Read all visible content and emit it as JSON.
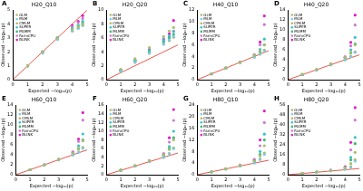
{
  "chart_data": [
    {
      "type": "scatter",
      "panel": "A",
      "title": "H20_Q10",
      "x_label": "Expected −log₁₀(p)",
      "y_label": "Observed −log₁₀(p)",
      "xlim": [
        0,
        5
      ],
      "xticks": [
        0,
        1,
        2,
        3,
        4,
        5
      ],
      "ylim": [
        0,
        5
      ],
      "yticks": [
        0,
        1,
        2,
        3,
        4,
        5
      ],
      "grid": false,
      "legend": "top-left",
      "marker": "circle",
      "x": [
        1,
        2,
        3,
        4,
        4.4,
        4.7
      ],
      "series": [
        {
          "name": "GLM",
          "color": "#a8bd6e",
          "values": [
            1,
            2,
            3,
            3.6,
            3.8,
            4.0
          ]
        },
        {
          "name": "MLM",
          "color": "#7fc8e6",
          "values": [
            1,
            1.9,
            2.9,
            3.5,
            3.7,
            3.9
          ]
        },
        {
          "name": "CMLM",
          "color": "#b5b35c",
          "values": [
            1,
            2,
            2.9,
            3.5,
            3.7,
            3.9
          ]
        },
        {
          "name": "SUPER",
          "color": "#38c4c4",
          "values": [
            1,
            2,
            3,
            3.7,
            3.9,
            4.2
          ]
        },
        {
          "name": "MLMM",
          "color": "#3cb878",
          "values": [
            1,
            2,
            3,
            3.6,
            3.9,
            4.1
          ]
        },
        {
          "name": "FarmCPU",
          "color": "#cc7ad6",
          "values": [
            1,
            2,
            3,
            3.8,
            4.1,
            4.4
          ]
        },
        {
          "name": "BLINK",
          "color": "#e21cc4",
          "values": [
            1,
            2,
            3,
            3.9,
            4.2,
            4.6
          ]
        }
      ]
    },
    {
      "type": "scatter",
      "panel": "B",
      "title": "H20_Q20",
      "x_label": "Expected −log₁₀(p)",
      "y_label": "Observed −log₁₀(p)",
      "xlim": [
        0,
        5
      ],
      "xticks": [
        0,
        1,
        2,
        3,
        4,
        5
      ],
      "ylim": [
        0,
        10
      ],
      "yticks": [
        0,
        2,
        4,
        6,
        8,
        10
      ],
      "grid": false,
      "legend": "top-left",
      "marker": "circle",
      "x": [
        1,
        2,
        3,
        4,
        4.4,
        4.7
      ],
      "series": [
        {
          "name": "GLM",
          "color": "#a8bd6e",
          "values": [
            1.5,
            3,
            4.6,
            6.2,
            7,
            7.5
          ]
        },
        {
          "name": "MLM",
          "color": "#7fc8e6",
          "values": [
            1.2,
            2.5,
            3.8,
            5.1,
            5.7,
            6.2
          ]
        },
        {
          "name": "CMLM",
          "color": "#b5b35c",
          "values": [
            1.2,
            2.5,
            3.8,
            5.1,
            5.6,
            6.1
          ]
        },
        {
          "name": "SUPER",
          "color": "#38c4c4",
          "values": [
            1.4,
            2.8,
            4.2,
            5.7,
            6.3,
            6.9
          ]
        },
        {
          "name": "MLMM",
          "color": "#3cb878",
          "values": [
            1.3,
            2.6,
            4,
            5.4,
            6,
            6.5
          ]
        },
        {
          "name": "FarmCPU",
          "color": "#cc7ad6",
          "values": [
            1.3,
            2.7,
            4.1,
            5.5,
            6.2,
            7
          ]
        },
        {
          "name": "BLINK",
          "color": "#e21cc4",
          "values": [
            1.4,
            2.8,
            4.3,
            5.8,
            6.6,
            8.5
          ]
        }
      ]
    },
    {
      "type": "scatter",
      "panel": "C",
      "title": "H40_Q10",
      "x_label": "Expected −log₁₀(p)",
      "y_label": "Observed −log₁₀(p)",
      "xlim": [
        0,
        5
      ],
      "xticks": [
        0,
        1,
        2,
        3,
        4,
        5
      ],
      "ylim": [
        0,
        12
      ],
      "yticks": [
        0,
        2,
        4,
        6,
        8,
        10,
        12
      ],
      "grid": false,
      "legend": "top-left",
      "marker": "circle",
      "x": [
        1,
        2,
        3,
        4,
        4.4,
        4.7
      ],
      "series": [
        {
          "name": "GLM",
          "color": "#a8bd6e",
          "values": [
            1,
            2,
            3,
            4.2,
            5,
            6
          ]
        },
        {
          "name": "MLM",
          "color": "#7fc8e6",
          "values": [
            1,
            2,
            3,
            3.9,
            4.4,
            5
          ]
        },
        {
          "name": "CMLM",
          "color": "#b5b35c",
          "values": [
            1,
            2,
            3,
            3.9,
            4.4,
            5.1
          ]
        },
        {
          "name": "SUPER",
          "color": "#38c4c4",
          "values": [
            1,
            2,
            3,
            4.2,
            5.2,
            7
          ]
        },
        {
          "name": "MLMM",
          "color": "#3cb878",
          "values": [
            1,
            2,
            3,
            4,
            4.8,
            6
          ]
        },
        {
          "name": "FarmCPU",
          "color": "#cc7ad6",
          "values": [
            1,
            2,
            3,
            4.2,
            6,
            9.5
          ]
        },
        {
          "name": "BLINK",
          "color": "#e21cc4",
          "values": [
            1,
            2,
            3,
            4.3,
            6.5,
            11
          ]
        }
      ]
    },
    {
      "type": "scatter",
      "panel": "D",
      "title": "H40_Q20",
      "x_label": "Expected −log₁₀(p)",
      "y_label": "Observed −log₁₀(p)",
      "xlim": [
        0,
        5
      ],
      "xticks": [
        0,
        1,
        2,
        3,
        4,
        5
      ],
      "ylim": [
        0,
        14
      ],
      "yticks": [
        0,
        2,
        4,
        6,
        8,
        10,
        12,
        14
      ],
      "grid": false,
      "legend": "top-left",
      "marker": "circle",
      "x": [
        1,
        2,
        3,
        4,
        4.4,
        4.7
      ],
      "series": [
        {
          "name": "GLM",
          "color": "#a8bd6e",
          "values": [
            1.1,
            2.1,
            3.2,
            4.5,
            5.5,
            7
          ]
        },
        {
          "name": "MLM",
          "color": "#7fc8e6",
          "values": [
            1,
            2,
            3,
            4,
            4.6,
            5.5
          ]
        },
        {
          "name": "CMLM",
          "color": "#b5b35c",
          "values": [
            1,
            2,
            3,
            4,
            4.7,
            5.6
          ]
        },
        {
          "name": "SUPER",
          "color": "#38c4c4",
          "values": [
            1,
            2,
            3.1,
            4.4,
            6,
            8.5
          ]
        },
        {
          "name": "MLMM",
          "color": "#3cb878",
          "values": [
            1,
            2,
            3,
            4.2,
            5.4,
            7.2
          ]
        },
        {
          "name": "FarmCPU",
          "color": "#cc7ad6",
          "values": [
            1,
            2,
            3.1,
            4.5,
            6.8,
            11
          ]
        },
        {
          "name": "BLINK",
          "color": "#e21cc4",
          "values": [
            1,
            2,
            3.1,
            4.6,
            7.5,
            13
          ]
        }
      ]
    },
    {
      "type": "scatter",
      "panel": "E",
      "title": "H60_Q10",
      "x_label": "Expected −log₁₀(p)",
      "y_label": "Observed −log₁₀(p)",
      "xlim": [
        0,
        5
      ],
      "xticks": [
        0,
        1,
        2,
        3,
        4,
        5
      ],
      "ylim": [
        0,
        14
      ],
      "yticks": [
        0,
        2,
        4,
        6,
        8,
        10,
        12,
        14
      ],
      "grid": false,
      "legend": "top-left",
      "marker": "circle",
      "x": [
        1,
        2,
        3,
        4,
        4.4,
        4.7
      ],
      "series": [
        {
          "name": "GLM",
          "color": "#a8bd6e",
          "values": [
            1,
            2,
            3.1,
            4.4,
            5.3,
            6.8
          ]
        },
        {
          "name": "MLM",
          "color": "#7fc8e6",
          "values": [
            1,
            2,
            3,
            4,
            4.5,
            5.3
          ]
        },
        {
          "name": "CMLM",
          "color": "#b5b35c",
          "values": [
            1,
            2,
            3,
            4,
            4.6,
            5.5
          ]
        },
        {
          "name": "SUPER",
          "color": "#38c4c4",
          "values": [
            1,
            2,
            3.1,
            4.3,
            5.8,
            8.2
          ]
        },
        {
          "name": "MLMM",
          "color": "#3cb878",
          "values": [
            1,
            2,
            3,
            4.2,
            5.2,
            7
          ]
        },
        {
          "name": "FarmCPU",
          "color": "#cc7ad6",
          "values": [
            1,
            2,
            3.1,
            4.5,
            6.7,
            11
          ]
        },
        {
          "name": "BLINK",
          "color": "#e21cc4",
          "values": [
            1,
            2,
            3.1,
            4.6,
            7.2,
            12.5
          ]
        }
      ]
    },
    {
      "type": "scatter",
      "panel": "F",
      "title": "H60_Q20",
      "x_label": "Expected −log₁₀(p)",
      "y_label": "Observed −log₁₀(p)",
      "xlim": [
        0,
        5
      ],
      "xticks": [
        0,
        1,
        2,
        3,
        4,
        5
      ],
      "ylim": [
        0,
        16
      ],
      "yticks": [
        0,
        2,
        4,
        6,
        8,
        10,
        12,
        14,
        16
      ],
      "grid": false,
      "legend": "top-left",
      "marker": "circle",
      "x": [
        1,
        2,
        3,
        4,
        4.4,
        4.7
      ],
      "series": [
        {
          "name": "GLM",
          "color": "#a8bd6e",
          "values": [
            1.1,
            2.1,
            3.2,
            4.6,
            5.8,
            8
          ]
        },
        {
          "name": "MLM",
          "color": "#7fc8e6",
          "values": [
            1,
            2,
            3,
            4,
            4.8,
            6
          ]
        },
        {
          "name": "CMLM",
          "color": "#b5b35c",
          "values": [
            1,
            2,
            3,
            4,
            4.9,
            6.2
          ]
        },
        {
          "name": "SUPER",
          "color": "#38c4c4",
          "values": [
            1,
            2,
            3.1,
            4.5,
            6.5,
            10
          ]
        },
        {
          "name": "MLMM",
          "color": "#3cb878",
          "values": [
            1,
            2,
            3.1,
            4.4,
            6,
            8.5
          ]
        },
        {
          "name": "FarmCPU",
          "color": "#cc7ad6",
          "values": [
            1,
            2,
            3.1,
            4.7,
            7.5,
            12.5
          ]
        },
        {
          "name": "BLINK",
          "color": "#e21cc4",
          "values": [
            1,
            2,
            3.2,
            4.8,
            8.5,
            15
          ]
        }
      ]
    },
    {
      "type": "scatter",
      "panel": "G",
      "title": "H80_Q10",
      "x_label": "Expected −log₁₀(p)",
      "y_label": "Observed −log₁₀(p)",
      "xlim": [
        0,
        5
      ],
      "xticks": [
        0,
        1,
        2,
        3,
        4,
        5
      ],
      "ylim": [
        0,
        24
      ],
      "yticks": [
        0,
        4,
        8,
        12,
        16,
        20,
        24
      ],
      "grid": false,
      "legend": "top-left",
      "marker": "circle",
      "x": [
        1,
        2,
        3,
        4,
        4.4,
        4.7
      ],
      "series": [
        {
          "name": "GLM",
          "color": "#a8bd6e",
          "values": [
            1.1,
            2.1,
            3.3,
            4.8,
            6.5,
            10
          ]
        },
        {
          "name": "MLM",
          "color": "#7fc8e6",
          "values": [
            1,
            2,
            3,
            4.1,
            5.2,
            7
          ]
        },
        {
          "name": "CMLM",
          "color": "#b5b35c",
          "values": [
            1,
            2,
            3,
            4.1,
            5.4,
            7.5
          ]
        },
        {
          "name": "SUPER",
          "color": "#38c4c4",
          "values": [
            1,
            2,
            3.2,
            4.8,
            8,
            14
          ]
        },
        {
          "name": "MLMM",
          "color": "#3cb878",
          "values": [
            1,
            2,
            3.1,
            4.6,
            7,
            12
          ]
        },
        {
          "name": "FarmCPU",
          "color": "#cc7ad6",
          "values": [
            1,
            2,
            3.2,
            5,
            10,
            18
          ]
        },
        {
          "name": "BLINK",
          "color": "#e21cc4",
          "values": [
            1,
            2,
            3.3,
            5.2,
            12,
            22
          ]
        }
      ]
    },
    {
      "type": "scatter",
      "panel": "H",
      "title": "H80_Q20",
      "x_label": "Expected −log₁₀(p)",
      "y_label": "Observed −log₁₀(p)",
      "xlim": [
        0,
        5
      ],
      "xticks": [
        0,
        1,
        2,
        3,
        4,
        5
      ],
      "ylim": [
        0,
        56
      ],
      "yticks": [
        0,
        8,
        16,
        24,
        32,
        40,
        48,
        56
      ],
      "grid": false,
      "legend": "top-left",
      "marker": "circle",
      "x": [
        1,
        2,
        3,
        4,
        4.4,
        4.7
      ],
      "series": [
        {
          "name": "GLM",
          "color": "#a8bd6e",
          "values": [
            1.2,
            2.3,
            3.6,
            5.5,
            9,
            18
          ]
        },
        {
          "name": "MLM",
          "color": "#7fc8e6",
          "values": [
            1,
            2,
            3.1,
            4.3,
            6,
            11
          ]
        },
        {
          "name": "CMLM",
          "color": "#b5b35c",
          "values": [
            1,
            2,
            3.1,
            4.4,
            6.5,
            12
          ]
        },
        {
          "name": "SUPER",
          "color": "#38c4c4",
          "values": [
            1,
            2.1,
            3.4,
            5.5,
            14,
            30
          ]
        },
        {
          "name": "MLMM",
          "color": "#3cb878",
          "values": [
            1,
            2.1,
            3.3,
            5.2,
            12,
            25
          ]
        },
        {
          "name": "FarmCPU",
          "color": "#cc7ad6",
          "values": [
            1,
            2.1,
            3.5,
            6,
            20,
            44
          ]
        },
        {
          "name": "BLINK",
          "color": "#e21cc4",
          "values": [
            1,
            2.2,
            3.6,
            6.5,
            26,
            54
          ]
        }
      ]
    }
  ]
}
